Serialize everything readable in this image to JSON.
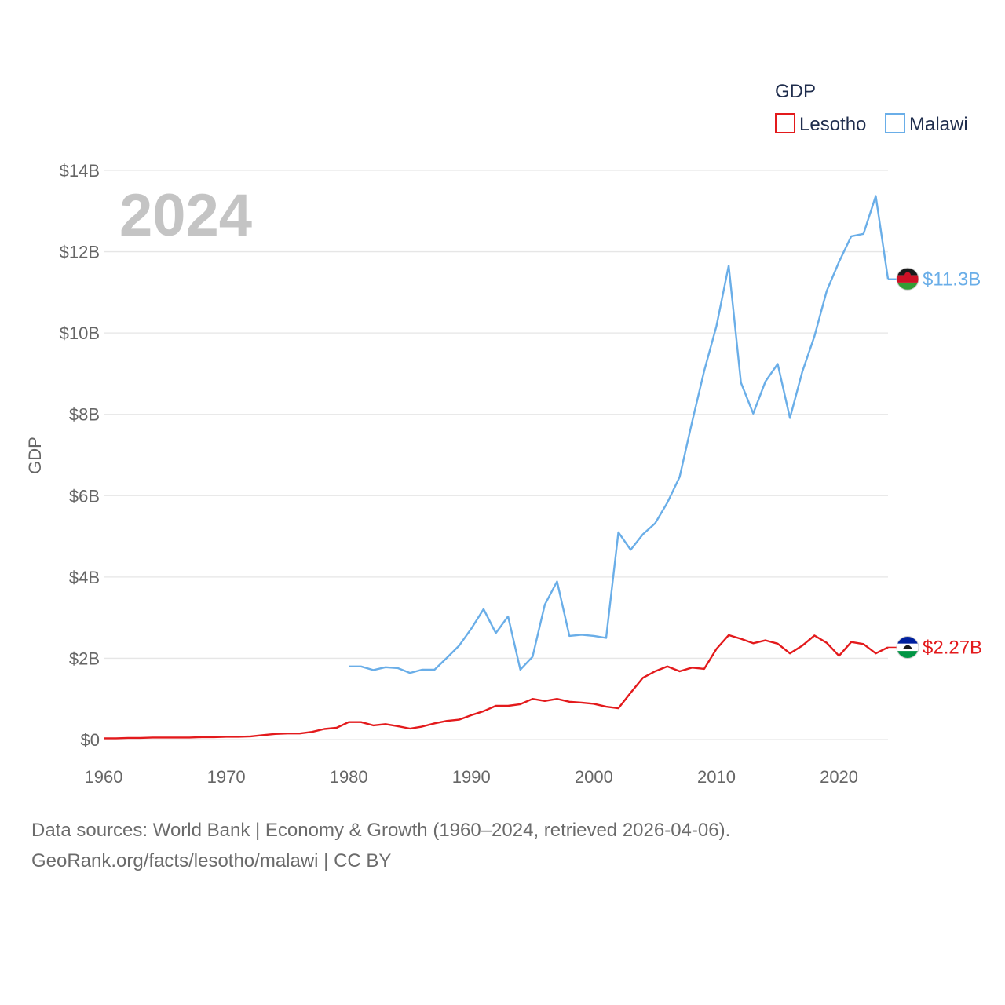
{
  "chart_data": {
    "type": "line",
    "ylabel": "GDP",
    "year_watermark": "2024",
    "legend": {
      "title": "GDP",
      "placement": "top-right"
    },
    "xlim": [
      1960,
      2024
    ],
    "ylim": [
      0,
      14
    ],
    "y_unit": "billions USD",
    "x_ticks": [
      "1960",
      "1970",
      "1980",
      "1990",
      "2000",
      "2010",
      "2020"
    ],
    "y_ticks": [
      {
        "value": 0,
        "label": "$0"
      },
      {
        "value": 2,
        "label": "$2B"
      },
      {
        "value": 4,
        "label": "$4B"
      },
      {
        "value": 6,
        "label": "$6B"
      },
      {
        "value": 8,
        "label": "$8B"
      },
      {
        "value": 10,
        "label": "$10B"
      },
      {
        "value": 12,
        "label": "$12B"
      },
      {
        "value": 14,
        "label": "$14B"
      }
    ],
    "grid": true,
    "series": [
      {
        "name": "Lesotho",
        "color": "#e31a1c",
        "end_label": "$2.27B",
        "flag_icon": "lesotho-flag-icon",
        "x": [
          1960,
          1961,
          1962,
          1963,
          1964,
          1965,
          1966,
          1967,
          1968,
          1969,
          1970,
          1971,
          1972,
          1973,
          1974,
          1975,
          1976,
          1977,
          1978,
          1979,
          1980,
          1981,
          1982,
          1983,
          1984,
          1985,
          1986,
          1987,
          1988,
          1989,
          1990,
          1991,
          1992,
          1993,
          1994,
          1995,
          1996,
          1997,
          1998,
          1999,
          2000,
          2001,
          2002,
          2003,
          2004,
          2005,
          2006,
          2007,
          2008,
          2009,
          2010,
          2011,
          2012,
          2013,
          2014,
          2015,
          2016,
          2017,
          2018,
          2019,
          2020,
          2021,
          2022,
          2023,
          2024
        ],
        "values": [
          0.03,
          0.03,
          0.04,
          0.04,
          0.05,
          0.05,
          0.05,
          0.05,
          0.06,
          0.06,
          0.07,
          0.07,
          0.08,
          0.11,
          0.14,
          0.15,
          0.15,
          0.19,
          0.26,
          0.29,
          0.43,
          0.43,
          0.35,
          0.38,
          0.33,
          0.27,
          0.32,
          0.4,
          0.46,
          0.49,
          0.6,
          0.7,
          0.83,
          0.83,
          0.87,
          1.0,
          0.95,
          1.0,
          0.93,
          0.91,
          0.88,
          0.81,
          0.77,
          1.15,
          1.52,
          1.68,
          1.8,
          1.68,
          1.77,
          1.74,
          2.23,
          2.57,
          2.48,
          2.37,
          2.44,
          2.36,
          2.12,
          2.31,
          2.56,
          2.38,
          2.06,
          2.4,
          2.35,
          2.12,
          2.27
        ]
      },
      {
        "name": "Malawi",
        "color": "#6aaee8",
        "end_label": "$11.3B",
        "flag_icon": "malawi-flag-icon",
        "x": [
          1980,
          1981,
          1982,
          1983,
          1984,
          1985,
          1986,
          1987,
          1988,
          1989,
          1990,
          1991,
          1992,
          1993,
          1994,
          1995,
          1996,
          1997,
          1998,
          1999,
          2000,
          2001,
          2002,
          2003,
          2004,
          2005,
          2006,
          2007,
          2008,
          2009,
          2010,
          2011,
          2012,
          2013,
          2014,
          2015,
          2016,
          2017,
          2018,
          2019,
          2020,
          2021,
          2022,
          2023,
          2024
        ],
        "values": [
          1.8,
          1.8,
          1.71,
          1.78,
          1.76,
          1.64,
          1.72,
          1.72,
          2.01,
          2.31,
          2.73,
          3.21,
          2.62,
          3.03,
          1.72,
          2.04,
          3.32,
          3.89,
          2.55,
          2.58,
          2.55,
          2.5,
          5.1,
          4.67,
          5.05,
          5.32,
          5.83,
          6.46,
          7.8,
          9.07,
          10.17,
          11.66,
          8.78,
          8.02,
          8.81,
          9.24,
          7.91,
          9.04,
          9.92,
          11.04,
          11.75,
          12.38,
          12.44,
          13.37,
          11.33
        ]
      }
    ]
  },
  "footer": {
    "line1": "Data sources: World Bank | Economy & Growth (1960–2024, retrieved 2026-04-06).",
    "line2": "GeoRank.org/facts/lesotho/malawi | CC BY"
  }
}
